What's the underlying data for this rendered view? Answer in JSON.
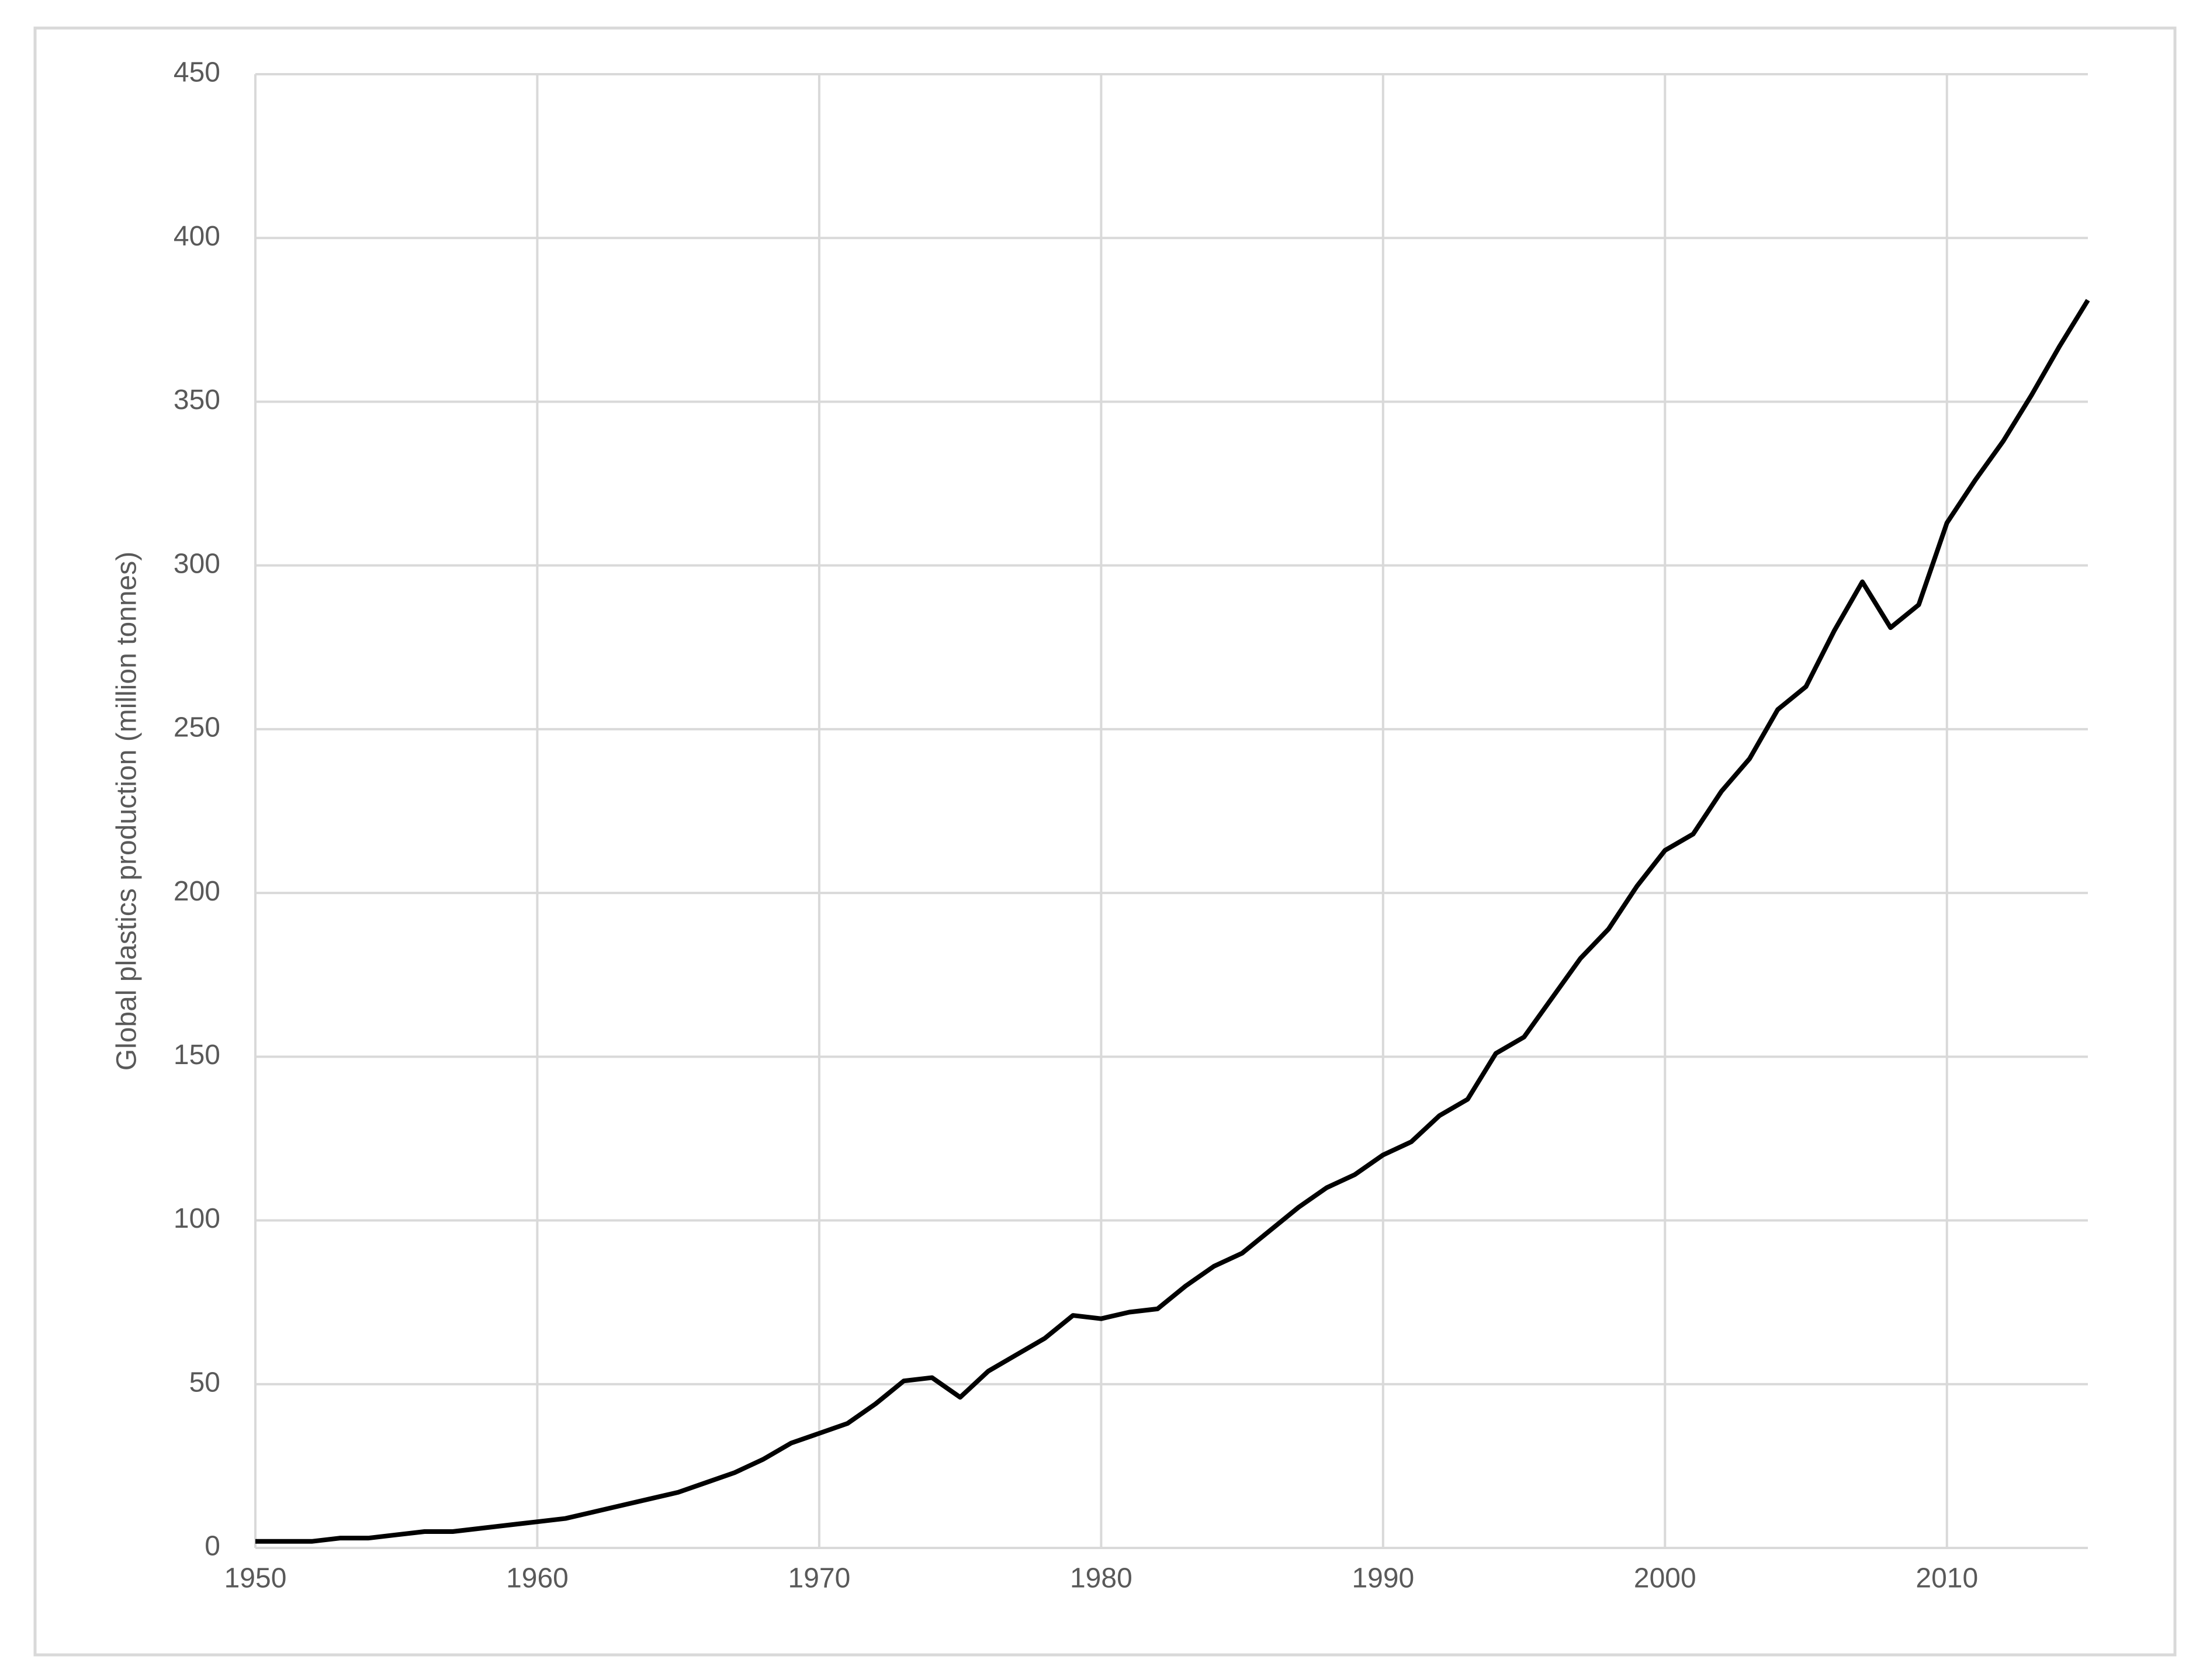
{
  "chart_data": {
    "type": "line",
    "y_label": "Global plastics production (million tonnes)",
    "x": [
      1950,
      1951,
      1952,
      1953,
      1954,
      1955,
      1956,
      1957,
      1958,
      1959,
      1960,
      1961,
      1962,
      1963,
      1964,
      1965,
      1966,
      1967,
      1968,
      1969,
      1970,
      1971,
      1972,
      1973,
      1974,
      1975,
      1976,
      1977,
      1978,
      1979,
      1980,
      1981,
      1982,
      1983,
      1984,
      1985,
      1986,
      1987,
      1988,
      1989,
      1990,
      1991,
      1992,
      1993,
      1994,
      1995,
      1996,
      1997,
      1998,
      1999,
      2000,
      2001,
      2002,
      2003,
      2004,
      2005,
      2006,
      2007,
      2008,
      2009,
      2010,
      2011,
      2012,
      2013,
      2014,
      2015
    ],
    "series": [
      {
        "color": "#000000",
        "values": [
          2,
          2,
          2,
          3,
          3,
          4,
          5,
          5,
          6,
          7,
          8,
          9,
          11,
          13,
          15,
          17,
          20,
          23,
          27,
          32,
          35,
          38,
          44,
          51,
          52,
          46,
          54,
          59,
          64,
          71,
          70,
          72,
          73,
          80,
          86,
          90,
          97,
          104,
          110,
          114,
          120,
          124,
          132,
          137,
          151,
          156,
          168,
          180,
          189,
          202,
          213,
          218,
          231,
          241,
          256,
          263,
          280,
          295,
          281,
          288,
          313,
          326,
          338,
          352,
          367,
          381
        ]
      }
    ],
    "xlim": [
      1950,
      2015
    ],
    "xticks": [
      1950,
      1960,
      1970,
      1980,
      1990,
      2000,
      2010
    ],
    "ylim": [
      0,
      450
    ],
    "yticks": [
      0,
      50,
      100,
      150,
      200,
      250,
      300,
      350,
      400,
      450
    ],
    "grid": true
  }
}
